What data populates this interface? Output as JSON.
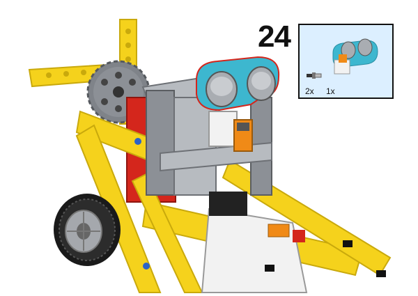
{
  "step": {
    "number": "24"
  },
  "parts": [
    {
      "name": "axle-pin",
      "quantity": "2x"
    },
    {
      "name": "ultrasonic-sensor",
      "quantity": "1x"
    }
  ],
  "colors": {
    "beam_yellow": "#f5d21c",
    "beam_yellow_dark": "#c9a90c",
    "frame_gray": "#8c9096",
    "frame_gray_light": "#b7bbc0",
    "gear_gray": "#7f8389",
    "sensor_cyan": "#3db7cf",
    "sensor_body": "#a9adb2",
    "brick_red": "#d4261c",
    "tire_black": "#1a1a1a",
    "hub_white": "#f2f2f2",
    "accent_orange": "#f08a17",
    "panel_bg": "#dcefff"
  }
}
